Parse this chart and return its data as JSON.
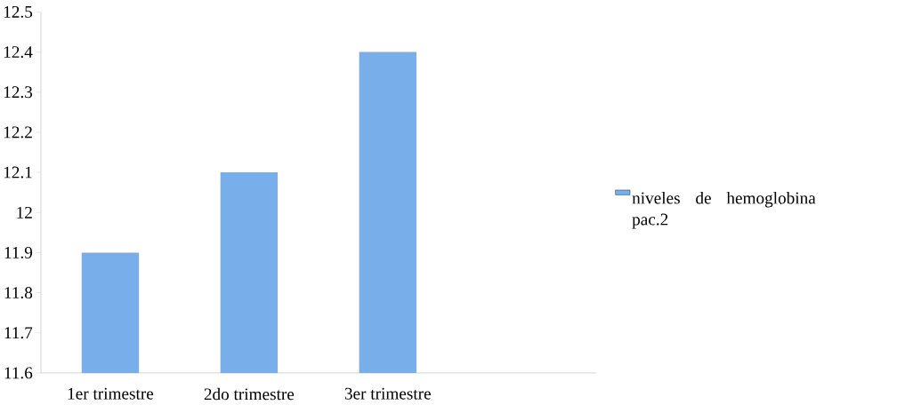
{
  "chart_data": {
    "type": "bar",
    "categories": [
      "1er trimestre",
      "2do trimestre",
      "3er trimestre",
      null
    ],
    "series": [
      {
        "name": "niveles de hemoglobina pac.2",
        "color": "#78aeea",
        "values": [
          11.9,
          12.1,
          12.4,
          null
        ]
      }
    ],
    "ylim": [
      11.6,
      12.5
    ],
    "yticks": [
      11.6,
      11.7,
      11.8,
      11.9,
      12,
      12.1,
      12.2,
      12.3,
      12.4,
      12.5
    ],
    "grid": false,
    "legend": "right"
  }
}
